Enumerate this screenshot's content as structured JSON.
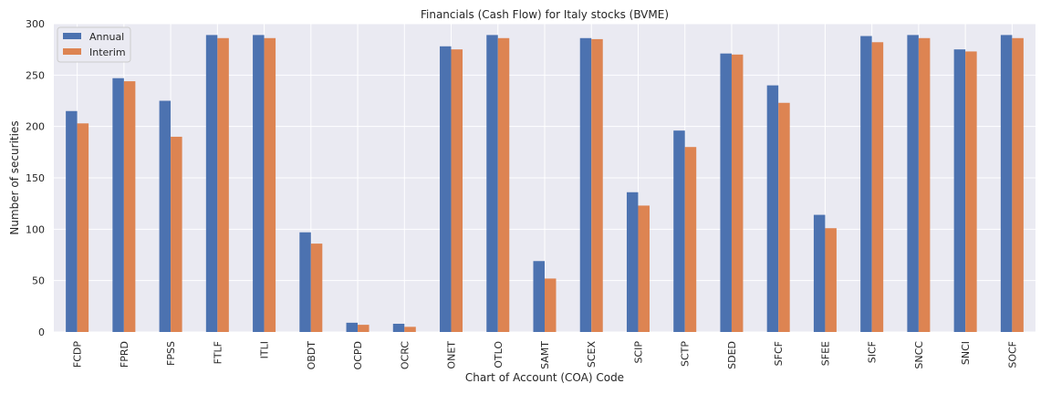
{
  "chart_data": {
    "type": "bar",
    "title": "Financials (Cash Flow) for Italy stocks (BVME)",
    "xlabel": "Chart of Account (COA) Code",
    "ylabel": "Number of securities",
    "ylim": [
      0,
      300
    ],
    "yticks": [
      0,
      50,
      100,
      150,
      200,
      250,
      300
    ],
    "grid": true,
    "legend_position": "top-left",
    "categories": [
      "FCDP",
      "FPRD",
      "FPSS",
      "FTLF",
      "ITLI",
      "OBDT",
      "OCPD",
      "OCRC",
      "ONET",
      "OTLO",
      "SAMT",
      "SCEX",
      "SCIP",
      "SCTP",
      "SDED",
      "SFCF",
      "SFEE",
      "SICF",
      "SNCC",
      "SNCI",
      "SOCF"
    ],
    "series": [
      {
        "name": "Annual",
        "color": "#4c72b0",
        "values": [
          215,
          247,
          225,
          289,
          289,
          97,
          9,
          8,
          278,
          289,
          69,
          286,
          136,
          196,
          271,
          240,
          114,
          288,
          289,
          275,
          289
        ]
      },
      {
        "name": "Interim",
        "color": "#dd8452",
        "values": [
          203,
          244,
          190,
          286,
          286,
          86,
          7,
          5,
          275,
          286,
          52,
          285,
          123,
          180,
          270,
          223,
          101,
          282,
          286,
          273,
          286
        ]
      }
    ]
  }
}
